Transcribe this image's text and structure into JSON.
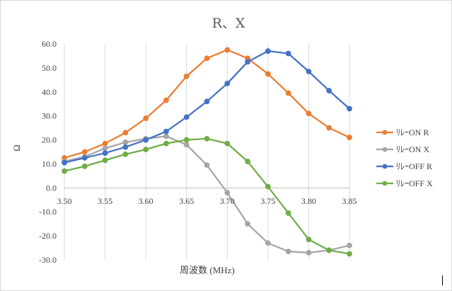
{
  "chart_data": {
    "type": "line",
    "title": "R、X",
    "xlabel": "周波数 (MHz)",
    "ylabel": "Ω",
    "x": [
      3.5,
      3.525,
      3.55,
      3.575,
      3.6,
      3.625,
      3.65,
      3.675,
      3.7,
      3.725,
      3.75,
      3.775,
      3.8,
      3.825,
      3.85
    ],
    "xlim": [
      3.5,
      3.85
    ],
    "ylim": [
      -30,
      60
    ],
    "xticks": [
      "3.50",
      "3.55",
      "3.60",
      "3.65",
      "3.70",
      "3.75",
      "3.80",
      "3.85"
    ],
    "yticks": [
      "60.0",
      "50.0",
      "40.0",
      "30.0",
      "20.0",
      "10.0",
      "0.0",
      "-10.0",
      "-20.0",
      "-30.0"
    ],
    "grid": "vertical",
    "legend_position": "right",
    "series": [
      {
        "name": "ﾘﾚｰON R",
        "color": "#ED7D31",
        "values": [
          12.5,
          15,
          18.5,
          23,
          29,
          36.5,
          46.5,
          54,
          57.5,
          54,
          47.5,
          39.5,
          31,
          25,
          21
        ]
      },
      {
        "name": "ﾘﾚｰON X",
        "color": "#A5A5A5",
        "values": [
          11,
          13,
          16.5,
          19,
          20.5,
          21.5,
          18,
          9.5,
          -2,
          -15,
          -23,
          -26.5,
          -27,
          -26,
          -24
        ]
      },
      {
        "name": "ﾘﾚｰOFF R",
        "color": "#4472C4",
        "values": [
          10.5,
          12.5,
          14.5,
          17,
          20,
          23.5,
          29.5,
          36,
          43.5,
          52.5,
          57,
          56,
          48.5,
          40.5,
          33
        ]
      },
      {
        "name": "ﾘﾚｰOFF X",
        "color": "#70AD47",
        "values": [
          7,
          9,
          11.5,
          14,
          16,
          18.5,
          20,
          20.5,
          18.5,
          11,
          0.5,
          -10.5,
          -21.5,
          -26,
          -27.5
        ]
      }
    ]
  }
}
